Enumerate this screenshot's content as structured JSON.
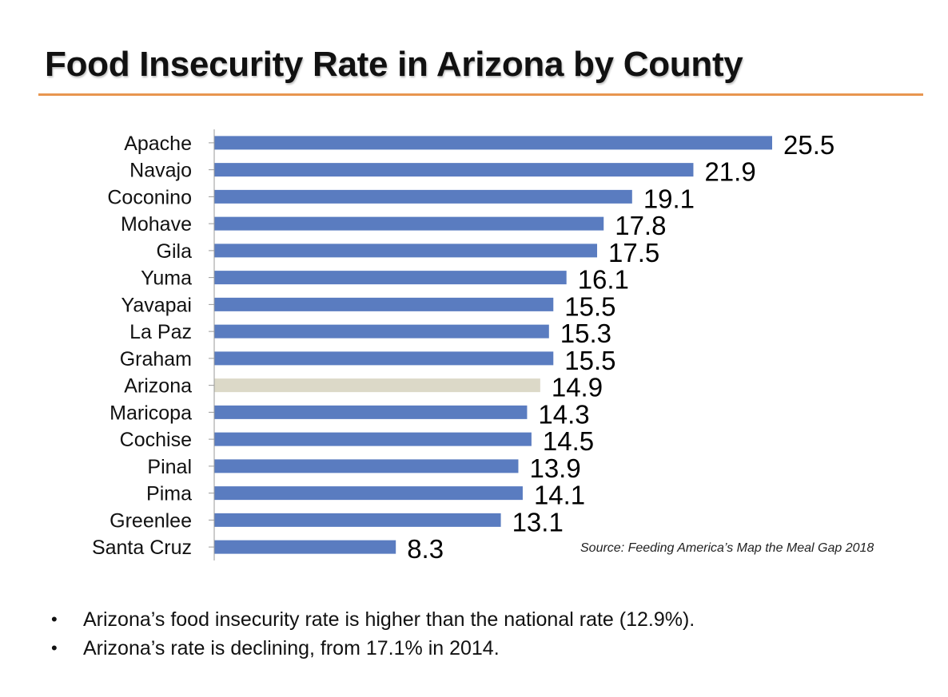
{
  "slide": {
    "title": "Food Insecurity Rate in Arizona by County",
    "source": "Source: Feeding America’s Map the Meal Gap 2018",
    "bullets": [
      "Arizona’s food insecurity rate is higher than the national rate (12.9%).",
      "Arizona’s rate is declining, from 17.1% in 2014."
    ]
  },
  "colors": {
    "accent_rule": "#e8964f",
    "bar": "#5a7cc0",
    "highlight_bar": "#dcd9c8",
    "axis": "#9a9a9a"
  },
  "chart_data": {
    "type": "bar",
    "orientation": "horizontal",
    "title": "",
    "xlabel": "",
    "ylabel": "",
    "xlim": [
      0,
      27
    ],
    "grid": false,
    "legend": "none",
    "data_labels": true,
    "highlight_category": "Arizona",
    "categories": [
      "Apache",
      "Navajo",
      "Coconino",
      "Mohave",
      "Gila",
      "Yuma",
      "Yavapai",
      "La Paz",
      "Graham",
      "Arizona",
      "Maricopa",
      "Cochise",
      "Pinal",
      "Pima",
      "Greenlee",
      "Santa Cruz"
    ],
    "values": [
      25.5,
      21.9,
      19.1,
      17.8,
      17.5,
      16.1,
      15.5,
      15.3,
      15.5,
      14.9,
      14.3,
      14.5,
      13.9,
      14.1,
      13.1,
      8.3
    ]
  }
}
